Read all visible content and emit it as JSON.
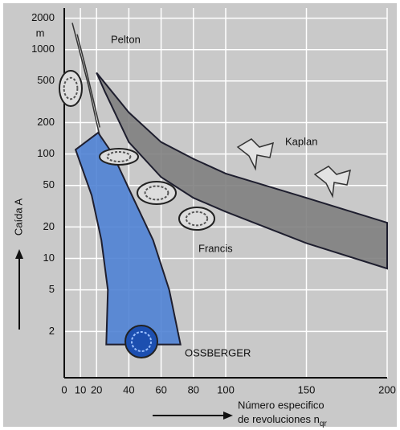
{
  "chart_data": {
    "type": "region",
    "ylabel": "Caída A",
    "yunit": "m",
    "xlabel": [
      "Número especifico",
      "de revoluciones n"
    ],
    "xlabel_subscript": "qr",
    "annotations": [
      "Pelton",
      "Kaplan",
      "Francis",
      "OSSBERGER"
    ],
    "xlim": [
      0,
      200
    ],
    "ylim": [
      0.72,
      2500
    ],
    "log_y": true,
    "grid": true,
    "xticks": [
      0,
      10,
      20,
      40,
      60,
      80,
      100,
      150,
      200
    ],
    "yticks": [
      2000,
      1000,
      500,
      200,
      100,
      50,
      20,
      10,
      5,
      2
    ],
    "series": [
      {
        "style": "line",
        "color": "#333333",
        "x": [
          5,
          10,
          15,
          20,
          23
        ],
        "values": [
          1800,
          900,
          450,
          200,
          130
        ]
      },
      {
        "style": "line",
        "color": "#333333",
        "x": [
          8,
          13,
          18,
          22
        ],
        "values": [
          1400,
          700,
          330,
          180
        ]
      },
      {
        "style": "area",
        "color": "#808080",
        "x": [
          20,
          40,
          60,
          80,
          100,
          150,
          200,
          200,
          150,
          100,
          80,
          60,
          40,
          25
        ],
        "values": [
          600,
          250,
          130,
          90,
          65,
          38,
          22,
          8,
          14,
          28,
          38,
          60,
          130,
          400
        ]
      },
      {
        "style": "area",
        "color": "#4f82d4",
        "x": [
          7,
          21,
          30,
          42,
          55,
          65,
          72,
          26,
          27,
          23,
          17
        ],
        "values": [
          110,
          160,
          100,
          40,
          15,
          5,
          1.5,
          1.5,
          5,
          15,
          40
        ]
      }
    ]
  }
}
